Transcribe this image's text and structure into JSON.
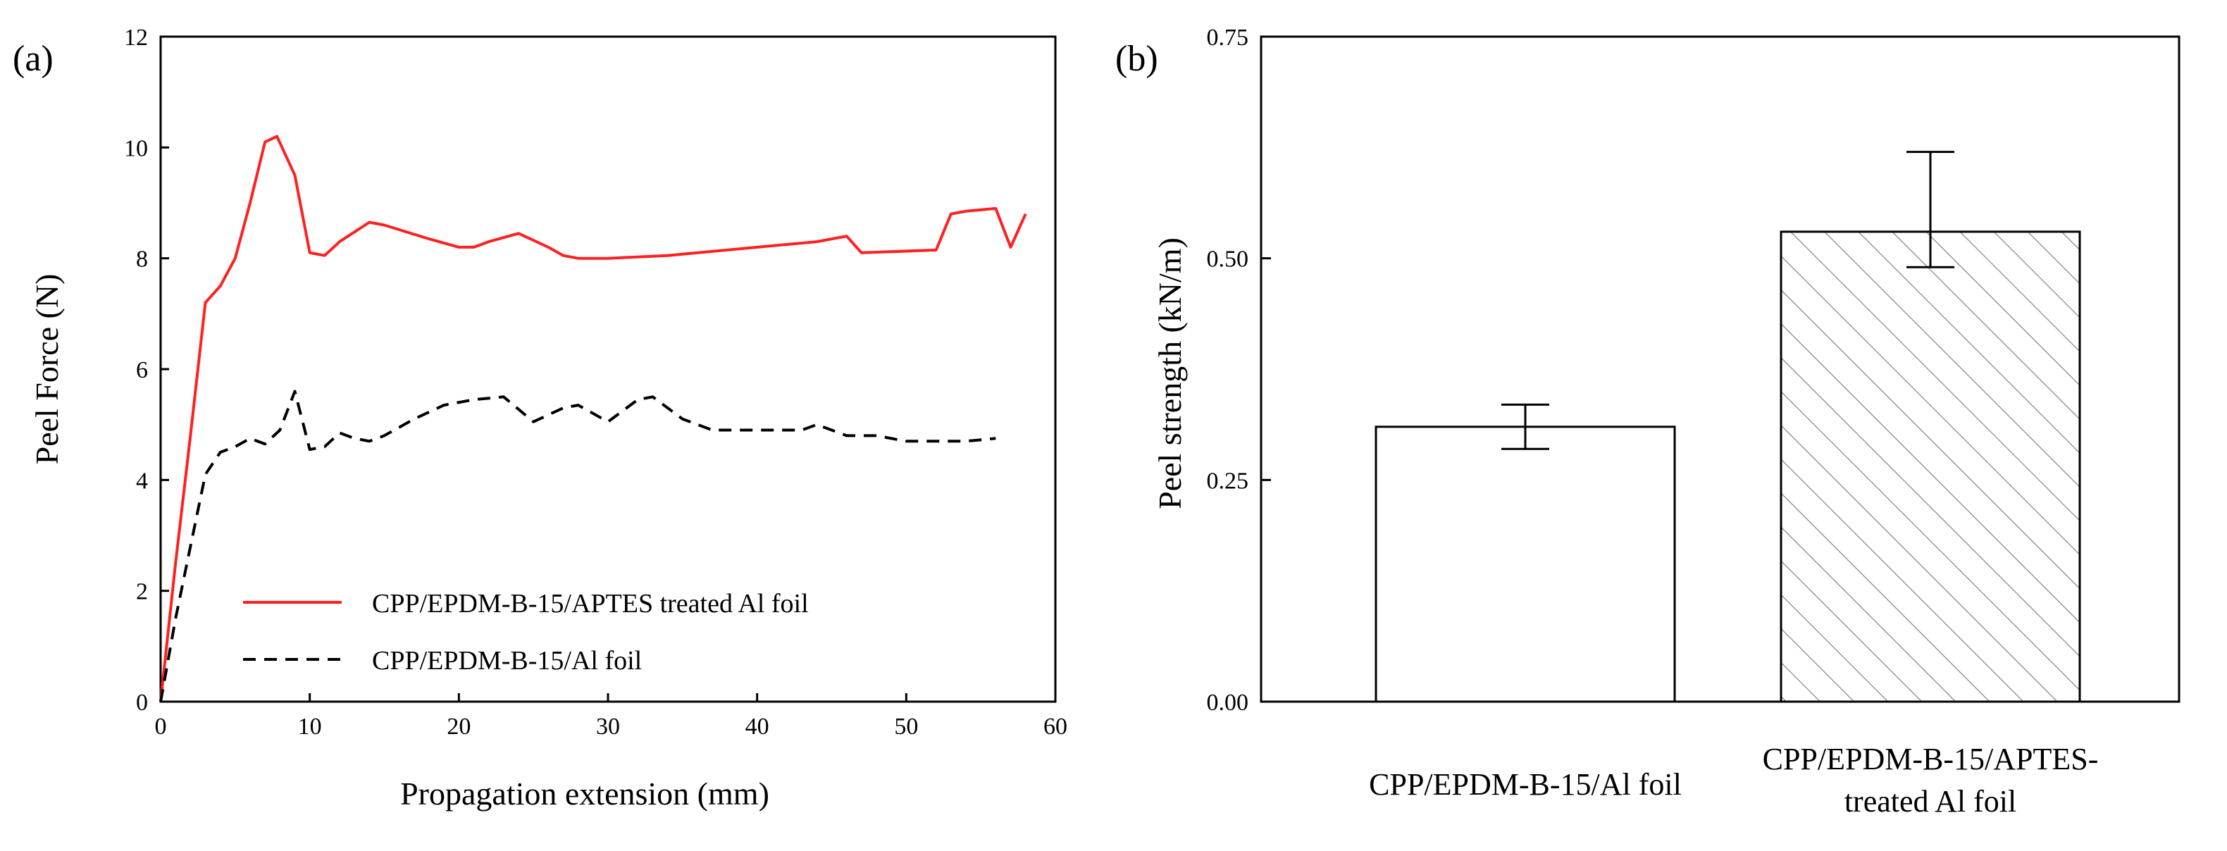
{
  "chart_data": [
    {
      "type": "line",
      "panel_label": "(a)",
      "xlabel": "Propagation extension (mm)",
      "ylabel": "Peel Force  (N)",
      "xlim": [
        0,
        60
      ],
      "ylim": [
        0,
        12
      ],
      "xticks": [
        "0",
        "10",
        "20",
        "30",
        "40",
        "50",
        "60"
      ],
      "yticks": [
        "0",
        "2",
        "4",
        "6",
        "8",
        "10",
        "12"
      ],
      "legend_position": "lower-center",
      "series": [
        {
          "name": "CPP/EPDM-B-15/APTES treated Al foil",
          "color": "#ff2020",
          "style": "solid",
          "x": [
            0,
            1,
            2,
            3,
            4,
            5,
            6,
            7,
            7.8,
            9,
            10,
            11,
            12,
            14,
            15,
            18,
            20,
            21,
            22,
            24,
            26,
            27,
            28,
            30,
            34,
            40,
            44,
            46,
            47,
            52,
            53,
            54,
            56,
            57,
            58
          ],
          "y": [
            0,
            2.5,
            4.8,
            7.2,
            7.5,
            8.0,
            9.0,
            10.1,
            10.2,
            9.5,
            8.1,
            8.05,
            8.3,
            8.65,
            8.6,
            8.35,
            8.2,
            8.2,
            8.3,
            8.45,
            8.2,
            8.05,
            8.0,
            8.0,
            8.05,
            8.2,
            8.3,
            8.4,
            8.1,
            8.15,
            8.8,
            8.85,
            8.9,
            8.2,
            8.8
          ]
        },
        {
          "name": "CPP/EPDM-B-15/Al foil",
          "color": "#000000",
          "style": "dashed",
          "x": [
            0,
            1,
            2,
            3,
            4,
            5,
            6,
            7,
            8,
            9,
            10,
            11,
            12,
            13,
            14,
            15,
            17,
            19,
            21,
            23,
            25,
            27,
            28,
            30,
            32,
            33,
            35,
            37,
            40,
            43,
            44,
            45,
            46,
            48,
            50,
            52,
            54,
            56
          ],
          "y": [
            0,
            1.5,
            2.8,
            4.1,
            4.5,
            4.6,
            4.75,
            4.65,
            4.9,
            5.6,
            4.55,
            4.6,
            4.85,
            4.75,
            4.7,
            4.8,
            5.1,
            5.35,
            5.45,
            5.5,
            5.05,
            5.3,
            5.35,
            5.05,
            5.45,
            5.5,
            5.1,
            4.9,
            4.9,
            4.9,
            5.0,
            4.9,
            4.8,
            4.8,
            4.7,
            4.7,
            4.7,
            4.75
          ]
        }
      ]
    },
    {
      "type": "bar",
      "panel_label": "(b)",
      "xlabel": "",
      "ylabel": "Peel strength (kN/m)",
      "ylim": [
        0,
        0.75
      ],
      "yticks": [
        "0.00",
        "0.25",
        "0.50",
        "0.75"
      ],
      "categories": [
        "CPP/EPDM-B-15/Al foil",
        "CPP/EPDM-B-15/APTES-treated Al foil"
      ],
      "category_lines": [
        [
          "CPP/EPDM-B-15/Al foil"
        ],
        [
          "CPP/EPDM-B-15/APTES-",
          "treated Al foil"
        ]
      ],
      "values": [
        0.31,
        0.53
      ],
      "error_low": [
        0.285,
        0.49
      ],
      "error_high": [
        0.335,
        0.62
      ],
      "fill": [
        "none",
        "hatched"
      ]
    }
  ]
}
